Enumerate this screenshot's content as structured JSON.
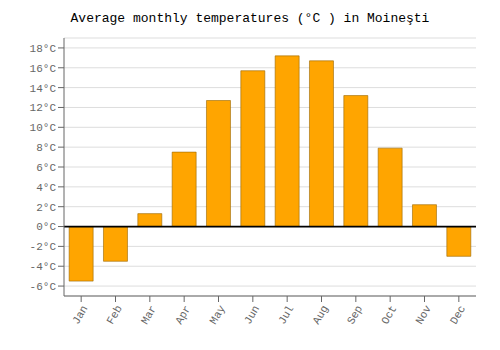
{
  "chart_data": {
    "type": "bar",
    "title": "Average monthly temperatures (°C ) in Moineşti",
    "categories": [
      "Jan",
      "Feb",
      "Mar",
      "Apr",
      "May",
      "Jun",
      "Jul",
      "Aug",
      "Sep",
      "Oct",
      "Nov",
      "Dec"
    ],
    "values": [
      -5.5,
      -3.5,
      1.3,
      7.5,
      12.7,
      15.7,
      17.2,
      16.7,
      13.2,
      7.9,
      2.2,
      -3.0
    ],
    "color": "#FFA500",
    "ylim": [
      -7,
      19
    ],
    "yticks": [
      {
        "value": -6,
        "label": "-6°C"
      },
      {
        "value": -4,
        "label": "-4°C"
      },
      {
        "value": -2,
        "label": "-2°C"
      },
      {
        "value": 0,
        "label": "0°C"
      },
      {
        "value": 2,
        "label": "2°C"
      },
      {
        "value": 4,
        "label": "4°C"
      },
      {
        "value": 6,
        "label": "6°C"
      },
      {
        "value": 8,
        "label": "8°C"
      },
      {
        "value": 10,
        "label": "10°C"
      },
      {
        "value": 12,
        "label": "12°C"
      },
      {
        "value": 14,
        "label": "14°C"
      },
      {
        "value": 16,
        "label": "16°C"
      },
      {
        "value": 18,
        "label": "18°C"
      }
    ],
    "grid": true
  }
}
